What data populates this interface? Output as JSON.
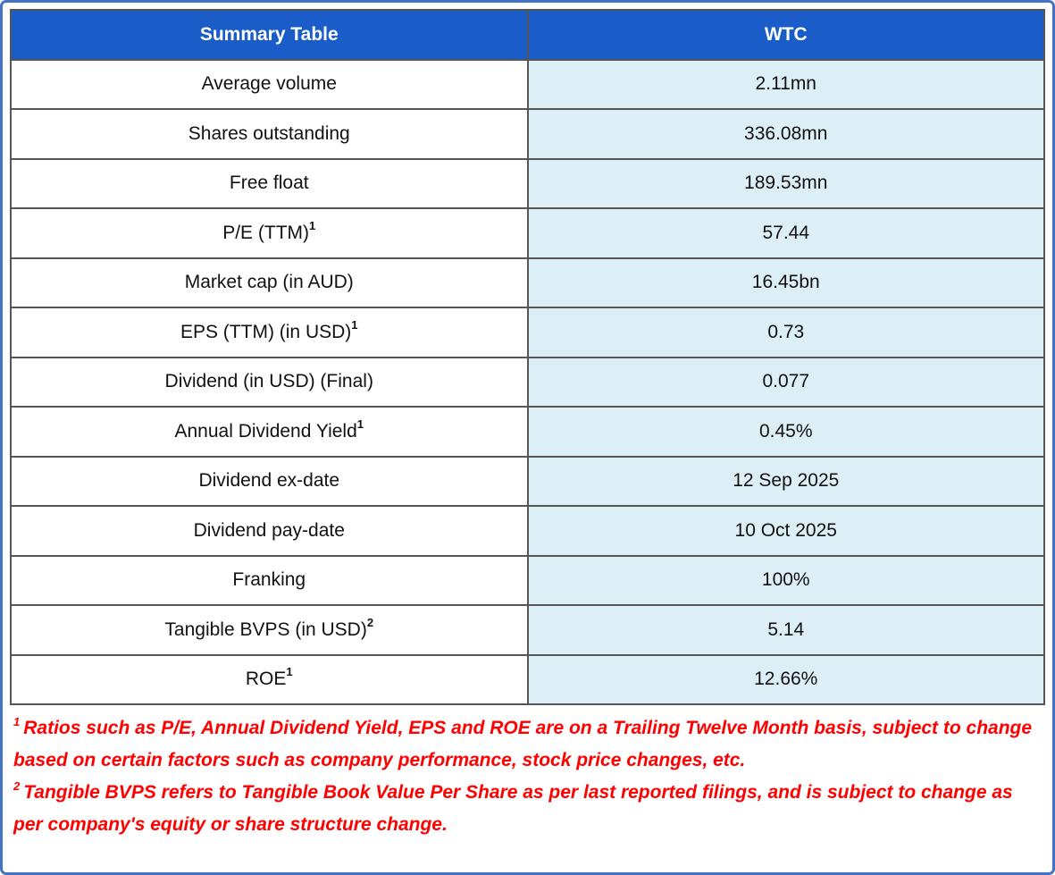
{
  "colors": {
    "frame_border": "#4472C4",
    "header_bg": "#1A5DC8",
    "header_text": "#FFFFFF",
    "value_bg": "#DCEEF6",
    "row_border": "#555555",
    "footnote_color": "#FF0000"
  },
  "table": {
    "header": {
      "col1": "Summary Table",
      "col2": "WTC"
    },
    "rows": [
      {
        "label": "Average volume",
        "sup": "",
        "value": "2.11mn"
      },
      {
        "label": "Shares outstanding",
        "sup": "",
        "value": "336.08mn"
      },
      {
        "label": "Free float",
        "sup": "",
        "value": "189.53mn"
      },
      {
        "label": "P/E (TTM)",
        "sup": "1",
        "value": "57.44"
      },
      {
        "label": "Market cap (in AUD)",
        "sup": "",
        "value": "16.45bn"
      },
      {
        "label": "EPS (TTM) (in USD)",
        "sup": "1",
        "value": "0.73"
      },
      {
        "label": "Dividend (in USD) (Final)",
        "sup": "",
        "value": "0.077"
      },
      {
        "label": "Annual Dividend Yield",
        "sup": "1",
        "value": "0.45%"
      },
      {
        "label": "Dividend ex-date",
        "sup": "",
        "value": "12 Sep 2025"
      },
      {
        "label": "Dividend pay-date",
        "sup": "",
        "value": "10 Oct 2025"
      },
      {
        "label": "Franking",
        "sup": "",
        "value": "100%"
      },
      {
        "label": "Tangible BVPS (in USD)",
        "sup": "2",
        "value": "5.14"
      },
      {
        "label": "ROE",
        "sup": "1",
        "value": "12.66%"
      }
    ]
  },
  "footnotes": [
    {
      "sup": "1",
      "text": "Ratios such as P/E, Annual Dividend Yield, EPS and ROE are on a Trailing Twelve Month basis, subject to change based on certain factors such as company performance, stock price changes, etc."
    },
    {
      "sup": "2",
      "text": "Tangible BVPS refers to Tangible Book Value Per Share as per last reported filings, and is subject to change as per company's equity or share structure change."
    }
  ]
}
